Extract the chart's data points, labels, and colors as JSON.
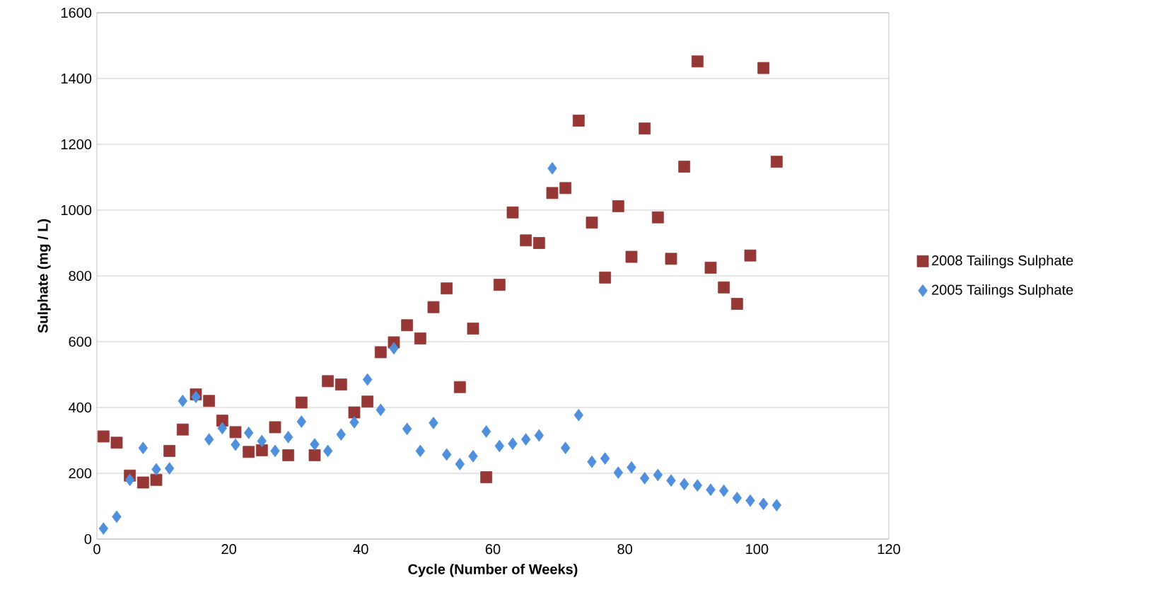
{
  "chart_data": {
    "type": "scatter",
    "xlabel": "Cycle (Number of Weeks)",
    "ylabel": "Sulphate (mg / L)",
    "xlim": [
      0,
      120
    ],
    "xticks": [
      0,
      20,
      40,
      60,
      80,
      100,
      120
    ],
    "ylim": [
      0,
      1600
    ],
    "yticks": [
      0,
      200,
      400,
      600,
      800,
      1000,
      1200,
      1400,
      1600
    ],
    "grid": "y",
    "legend": "right",
    "x": [
      1,
      3,
      5,
      7,
      9,
      11,
      13,
      15,
      17,
      19,
      21,
      23,
      25,
      27,
      29,
      31,
      33,
      35,
      37,
      39,
      41,
      43,
      45,
      47,
      49,
      51,
      53,
      55,
      57,
      59,
      61,
      63,
      65,
      67,
      69,
      71,
      73,
      75,
      77,
      79,
      81,
      83,
      85,
      87,
      89,
      91,
      93,
      95,
      97,
      99,
      101,
      103
    ],
    "series": [
      {
        "name": "2008 Tailings Sulphate",
        "color": "#953735",
        "marker": "square",
        "values": [
          312,
          293,
          193,
          172,
          180,
          268,
          333,
          440,
          420,
          360,
          325,
          265,
          270,
          340,
          255,
          415,
          255,
          480,
          470,
          385,
          418,
          568,
          598,
          650,
          610,
          705,
          762,
          462,
          640,
          188,
          773,
          993,
          908,
          900,
          1052,
          1067,
          1272,
          962,
          795,
          1012,
          858,
          1248,
          978,
          852,
          1132,
          1452,
          825,
          765,
          715,
          862,
          1432,
          1147
        ]
      },
      {
        "name": "2005 Tailings Sulphate",
        "color": "#4f8fdc",
        "marker": "diamond",
        "values": [
          32,
          68,
          180,
          277,
          212,
          215,
          420,
          432,
          303,
          337,
          287,
          323,
          298,
          268,
          310,
          357,
          288,
          268,
          318,
          355,
          485,
          393,
          580,
          335,
          268,
          353,
          257,
          228,
          252,
          327,
          283,
          290,
          303,
          315,
          1127,
          277,
          377,
          235,
          245,
          202,
          218,
          185,
          195,
          178,
          167,
          163,
          150,
          147,
          125,
          117,
          107,
          103
        ]
      }
    ]
  }
}
